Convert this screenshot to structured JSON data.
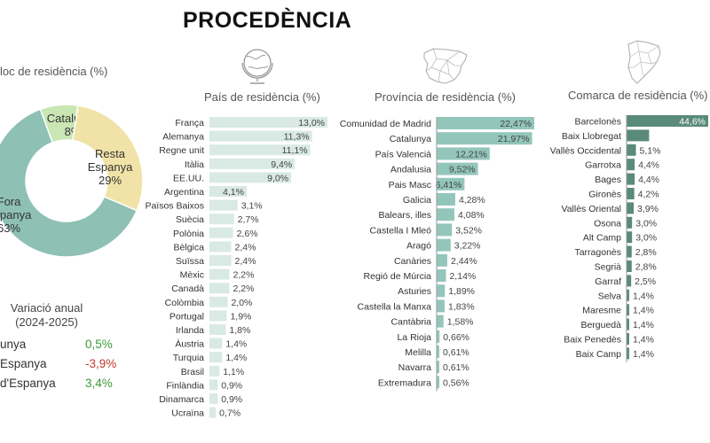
{
  "page": {
    "title": "PROCEDÈNCIA"
  },
  "colors": {
    "bar_light": "#d9e9e4",
    "bar_mid": "#93c6bb",
    "bar_dark": "#5a8a7a",
    "donut_catalunya": "#c9e6b4",
    "donut_resta": "#f1e3a7",
    "donut_fora": "#8ec0b4",
    "positive": "#3a9a3a",
    "negative": "#c0392b"
  },
  "icons": {
    "globe": "globe-icon",
    "spain_map": "spain-map-icon",
    "catalonia_map": "catalonia-map-icon"
  },
  "donut": {
    "title": "loc de residència (%)",
    "segments": [
      {
        "name": "Catalunya",
        "label1": "Catalunya",
        "label2": "8%",
        "value": 8
      },
      {
        "name": "Resta Espanya",
        "label1": "Resta",
        "label2": "Espanya",
        "label3": "29%",
        "value": 29
      },
      {
        "name": "Fora d'Espanya",
        "label1": "Fora",
        "label2": "Espanya",
        "label3": "63%",
        "value": 63
      }
    ]
  },
  "variation": {
    "title_line1": "Variació anual",
    "title_line2": "(2024-2025)",
    "rows": [
      {
        "label": "unya",
        "value": "0,5%",
        "sign": "positive"
      },
      {
        "label": "Espanya",
        "value": "-3,9%",
        "sign": "negative"
      },
      {
        "label": "d'Espanya",
        "value": "3,4%",
        "sign": "positive"
      }
    ]
  },
  "chart_data": [
    {
      "type": "bar",
      "orientation": "horizontal",
      "title": "País de residència (%)",
      "categories": [
        "França",
        "Alemanya",
        "Regne unit",
        "Itàlia",
        "EE.UU.",
        "Argentina",
        "Països Baixos",
        "Suècia",
        "Polònia",
        "Bèlgica",
        "Suïssa",
        "Mèxic",
        "Canadà",
        "Colòmbia",
        "Portugal",
        "Irlanda",
        "Àustria",
        "Turquia",
        "Brasil",
        "Finlàndia",
        "Dinamarca",
        "Ucraïna"
      ],
      "values": [
        13.0,
        11.3,
        11.1,
        9.4,
        9.0,
        4.1,
        3.1,
        2.7,
        2.6,
        2.4,
        2.4,
        2.2,
        2.2,
        2.0,
        1.9,
        1.8,
        1.4,
        1.4,
        1.1,
        0.9,
        0.9,
        0.7
      ],
      "labels": [
        "13,0%",
        "11,3%",
        "11,1%",
        "9,4%",
        "9,0%",
        "4,1%",
        "3,1%",
        "2,7%",
        "2,6%",
        "2,4%",
        "2,4%",
        "2,2%",
        "2,2%",
        "2,0%",
        "1,9%",
        "1,8%",
        "1,4%",
        "1,4%",
        "1,1%",
        "0,9%",
        "0,9%",
        "0,7%"
      ],
      "color": "#d9e9e4",
      "label_position": "inside-end"
    },
    {
      "type": "bar",
      "orientation": "horizontal",
      "title": "Província de residència (%)",
      "categories": [
        "Comunidad de Madrid",
        "Catalunya",
        "País Valencià",
        "Andalusia",
        "Pais Masc",
        "Galicia",
        "Balears, illes",
        "Castella I Mleó",
        "Aragó",
        "Canàries",
        "Regió de Múrcia",
        "Asturies",
        "Castella la Manxa",
        "Cantàbria",
        "La Rioja",
        "Melilla",
        "Navarra",
        "Extremadura"
      ],
      "values": [
        22.47,
        21.97,
        12.21,
        9.52,
        6.41,
        4.28,
        4.08,
        3.52,
        3.22,
        2.44,
        2.14,
        1.89,
        1.83,
        1.58,
        0.66,
        0.61,
        0.61,
        0.56
      ],
      "labels": [
        "22,47%",
        "21,97%",
        "12,21%",
        "9,52%",
        "6,41%",
        "4,28%",
        "4,08%",
        "3,52%",
        "3,22%",
        "2,44%",
        "2,14%",
        "1,89%",
        "1,83%",
        "1,58%",
        "0,66%",
        "0,61%",
        "0,61%",
        "0,56%"
      ],
      "color": "#93c6bb",
      "label_position": "inside-end"
    },
    {
      "type": "bar",
      "orientation": "horizontal",
      "title": "Comarca de residència (%)",
      "categories": [
        "Barcelonès",
        "Baix Llobregat",
        "Vallès Occidental",
        "Garrotxa",
        "Bages",
        "Gironès",
        "Vallès Oriental",
        "Osona",
        "Alt Camp",
        "Tarragonès",
        "Segrià",
        "Garraf",
        "Selva",
        "Maresme",
        "Berguedà",
        "Baix Penedès",
        "Baix Camp"
      ],
      "values": [
        44.6,
        12.3,
        5.1,
        4.4,
        4.4,
        4.2,
        3.9,
        3.0,
        3.0,
        2.8,
        2.8,
        2.5,
        1.4,
        1.4,
        1.4,
        1.4,
        1.4
      ],
      "labels": [
        "44,6%",
        "12,3%",
        "5,1%",
        "4,4%",
        "4,4%",
        "4,2%",
        "3,9%",
        "3,0%",
        "3,0%",
        "2,8%",
        "2,8%",
        "2,5%",
        "1,4%",
        "1,4%",
        "1,4%",
        "1,4%",
        "1,4%"
      ],
      "color": "#5a8a7a",
      "label_position": "outside-end"
    }
  ]
}
